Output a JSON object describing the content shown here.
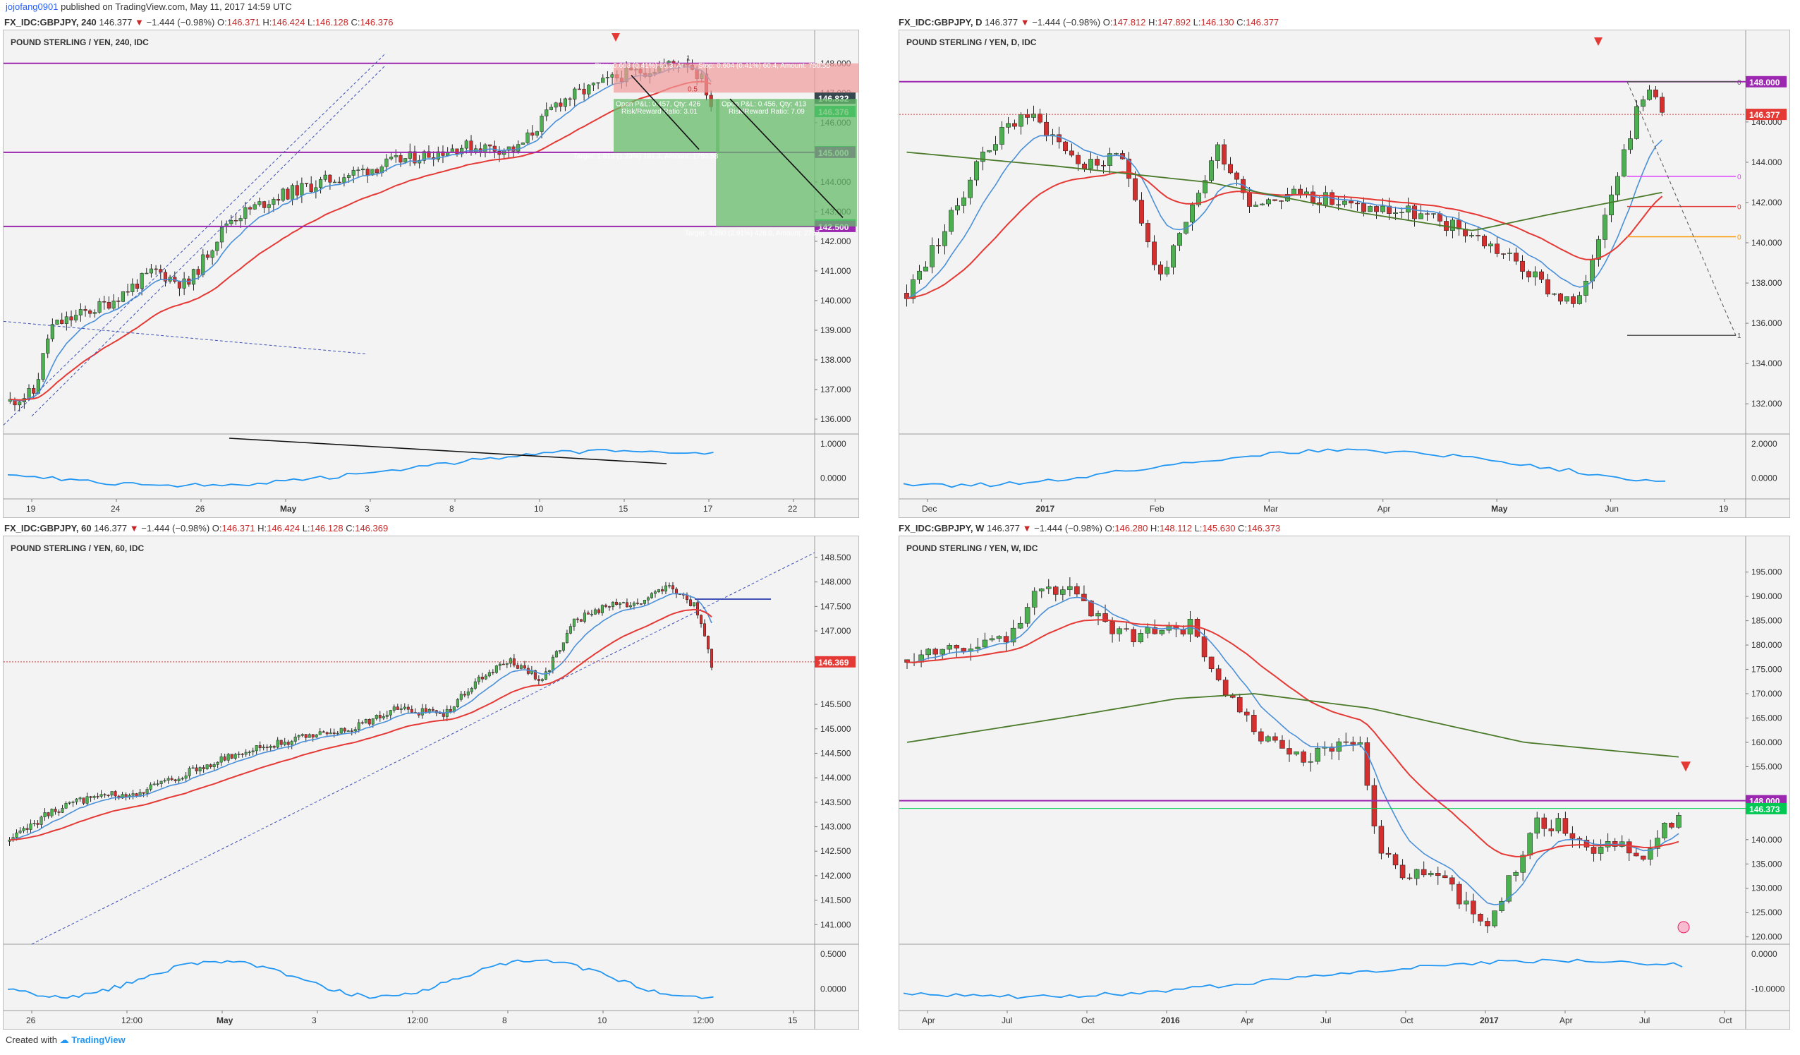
{
  "header": {
    "user": "jojofang0901",
    "published": "published on TradingView.com, May 11, 2017 14:59 UTC"
  },
  "footer": {
    "created": "Created with",
    "brand": "TradingView"
  },
  "colors": {
    "up": "#4caf50",
    "down": "#d32f2f",
    "ema_fast": "#4a90d9",
    "ema_slow": "#e53935",
    "ma_long": "#4a7a2a",
    "level": "#9c27b0",
    "osc": "#2196f3"
  },
  "panels": [
    {
      "id": "p240",
      "info": {
        "symbol": "FX_IDC:GBPJPY, 240",
        "last": "146.377",
        "chg": "−1.444 (−0.98%)",
        "o": "146.371",
        "h": "146.424",
        "l": "146.128",
        "c": "146.376"
      },
      "title": "POUND STERLING / YEN, 240, IDC",
      "chart_data": {
        "type": "candlestick",
        "y_range": [
          135.5,
          148.4
        ],
        "y_ticks": [
          "148.000",
          "147.000",
          "146.000",
          "145.000",
          "144.000",
          "143.000",
          "142.000",
          "141.000",
          "140.000",
          "139.000",
          "138.000",
          "137.000",
          "136.000"
        ],
        "x_ticks": [
          "19",
          "24",
          "26",
          "May",
          "3",
          "8",
          "10",
          "15",
          "17",
          "22"
        ],
        "osc_ticks": [
          "1.0000",
          "0.0000"
        ],
        "start": 136.6,
        "end": 146.4,
        "peak": 148.1,
        "levels": [
          148.0,
          145.0,
          142.5
        ],
        "price_labels": [
          {
            "text": "146.833",
            "value": 146.833,
            "style": "dark"
          },
          {
            "text": "146.832",
            "value": 146.832,
            "style": "dark"
          },
          {
            "text": "146.376",
            "value": 146.376,
            "style": "green"
          },
          {
            "text": "145.020",
            "value": 145.02,
            "style": "green"
          },
          {
            "text": "145.000",
            "value": 145.0,
            "style": "purple"
          },
          {
            "text": "142.552",
            "value": 142.552,
            "style": "green"
          },
          {
            "text": "142.500",
            "value": 142.5,
            "style": "purple"
          }
        ],
        "annotations": {
          "stop1": "Stop: 0.603 (0.41%) 60.3, Ar",
          "stop2": "Stop: 0.604 (0.41%) 60.4, Amount: 750.55",
          "pl1": "Open P&L: 0.457, Qty: 426",
          "rr1": "Risk/Reward Ratio: 3.01",
          "pl2": "Open P&L: 0.456, Qty: 413",
          "rr2": "Risk/Reward Ratio: 7.09",
          "target1": "Target: 1.813 (1.23%) 181.3, Amount: 1750.58",
          "target2": "Target: 4.280 (2.91%) 428.0, Amount: 2767.",
          "fib": "1",
          "half": "0.5"
        }
      }
    },
    {
      "id": "pD",
      "info": {
        "symbol": "FX_IDC:GBPJPY, D",
        "last": "146.377",
        "chg": "−1.444 (−0.98%)",
        "o": "147.812",
        "h": "147.892",
        "l": "146.130",
        "c": "146.377"
      },
      "title": "POUND STERLING / YEN, D, IDC",
      "chart_data": {
        "type": "candlestick",
        "y_range": [
          130.5,
          149.5
        ],
        "y_ticks": [
          "146.000",
          "144.000",
          "142.000",
          "140.000",
          "138.000",
          "136.000",
          "134.000",
          "132.000"
        ],
        "x_ticks": [
          "Dec",
          "2017",
          "Feb",
          "Mar",
          "Apr",
          "May",
          "Jun",
          "19"
        ],
        "osc_ticks": [
          "2.0000",
          "0.0000"
        ],
        "levels": [
          148.0
        ],
        "price_labels": [
          {
            "text": "148.000",
            "value": 148.0,
            "style": "purple"
          },
          {
            "text": "146.377",
            "value": 146.377,
            "style": "red"
          }
        ],
        "fib_levels": [
          148.0,
          143.3,
          141.8,
          140.3,
          135.4
        ],
        "fib_labels": [
          "0",
          "0",
          "0",
          "0",
          "1"
        ]
      }
    },
    {
      "id": "p60",
      "info": {
        "symbol": "FX_IDC:GBPJPY, 60",
        "last": "146.377",
        "chg": "−1.444 (−0.98%)",
        "o": "146.371",
        "h": "146.424",
        "l": "146.128",
        "c": "146.369"
      },
      "title": "POUND STERLING / YEN, 60, IDC",
      "chart_data": {
        "type": "candlestick",
        "y_range": [
          140.6,
          148.5
        ],
        "y_ticks": [
          "148.500",
          "148.000",
          "147.500",
          "147.000",
          "145.500",
          "145.000",
          "144.500",
          "144.000",
          "143.500",
          "143.000",
          "142.500",
          "142.000",
          "141.500",
          "141.000"
        ],
        "x_ticks": [
          "26",
          "12:00",
          "May",
          "3",
          "12:00",
          "8",
          "10",
          "12:00",
          "15"
        ],
        "osc_ticks": [
          "0.5000",
          "0.0000"
        ],
        "price_labels": [
          {
            "text": "146.369",
            "value": 146.369,
            "style": "red"
          }
        ]
      }
    },
    {
      "id": "pW",
      "info": {
        "symbol": "FX_IDC:GBPJPY, W",
        "last": "146.377",
        "chg": "−1.444 (−0.98%)",
        "o": "146.280",
        "h": "148.112",
        "l": "145.630",
        "c": "146.373"
      },
      "title": "POUND STERLING / YEN, W, IDC",
      "chart_data": {
        "type": "candlestick",
        "y_range": [
          118.5,
          198.0
        ],
        "y_ticks": [
          "195.000",
          "190.000",
          "185.000",
          "180.000",
          "175.000",
          "170.000",
          "165.000",
          "160.000",
          "155.000",
          "140.000",
          "135.000",
          "130.000",
          "125.000",
          "120.000"
        ],
        "x_ticks": [
          "Apr",
          "Jul",
          "Oct",
          "2016",
          "Apr",
          "Jul",
          "Oct",
          "2017",
          "Apr",
          "Jul",
          "Oct"
        ],
        "osc_ticks": [
          "0.0000",
          "-10.0000"
        ],
        "levels": [
          148.0
        ],
        "price_labels": [
          {
            "text": "148.000",
            "value": 148.0,
            "style": "purple"
          },
          {
            "text": "146.373",
            "value": 146.373,
            "style": "green"
          }
        ]
      }
    }
  ]
}
